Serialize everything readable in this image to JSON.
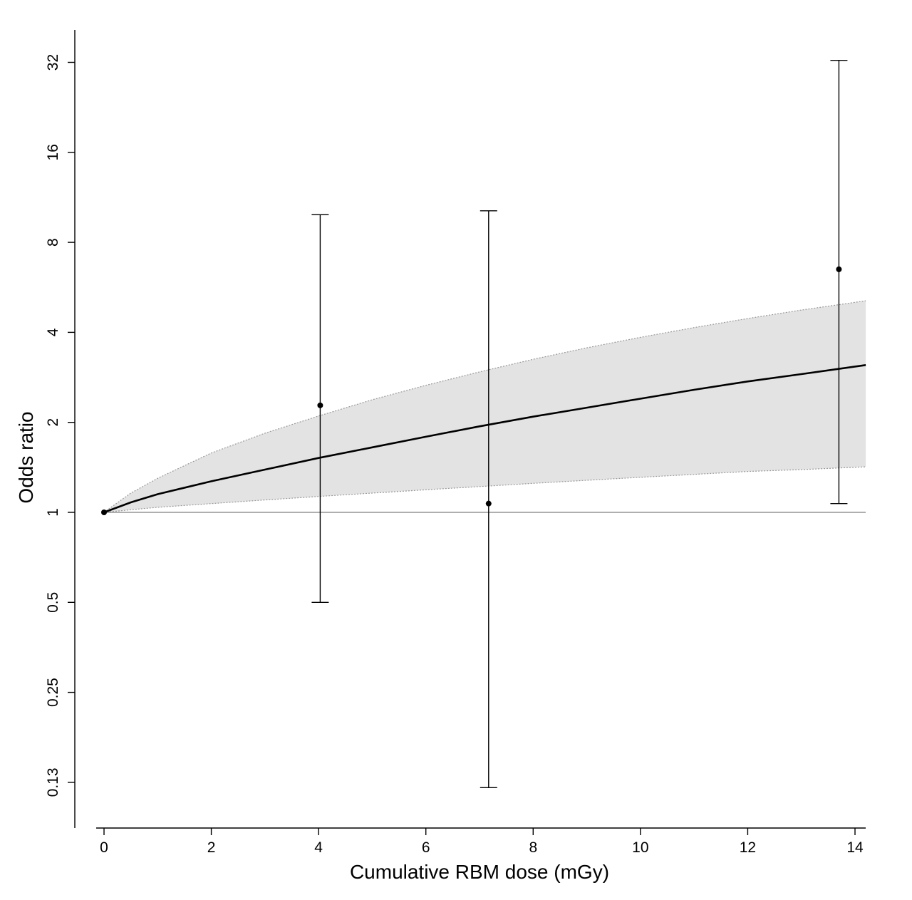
{
  "chart_data": {
    "type": "line",
    "title": "",
    "xlabel": "Cumulative RBM dose (mGy)",
    "ylabel": "Odds ratio",
    "xlim": [
      -0.55,
      14.1
    ],
    "ylim": [
      0.105,
      35
    ],
    "y_scale": "log2",
    "grid": false,
    "x_ticks": [
      0,
      2,
      4,
      6,
      8,
      10,
      12,
      14
    ],
    "x_tick_labels": [
      "0",
      "2",
      "4",
      "6",
      "8",
      "10",
      "12",
      "14"
    ],
    "y_ticks": [
      0.125,
      0.25,
      0.5,
      1,
      2,
      4,
      8,
      16,
      32
    ],
    "y_tick_labels": [
      "0.13",
      "0.25",
      "0.5",
      "1",
      "2",
      "4",
      "8",
      "16",
      "32"
    ],
    "reference_line_y": 1,
    "fit": {
      "x": [
        0,
        0.5,
        1,
        2,
        3,
        4,
        5,
        6,
        7,
        8,
        9,
        10,
        11,
        12,
        13,
        14.2
      ],
      "or": [
        1,
        1.08,
        1.15,
        1.27,
        1.39,
        1.52,
        1.65,
        1.79,
        1.94,
        2.09,
        2.24,
        2.4,
        2.57,
        2.74,
        2.9,
        3.11
      ],
      "ci_lower": [
        1,
        1.02,
        1.04,
        1.07,
        1.1,
        1.13,
        1.16,
        1.19,
        1.22,
        1.25,
        1.28,
        1.31,
        1.34,
        1.37,
        1.39,
        1.42
      ],
      "ci_upper": [
        1,
        1.16,
        1.3,
        1.58,
        1.84,
        2.1,
        2.38,
        2.66,
        2.95,
        3.25,
        3.55,
        3.85,
        4.15,
        4.45,
        4.75,
        5.1
      ]
    },
    "points": [
      {
        "x": 0,
        "or": 1
      },
      {
        "x": 4.03,
        "or": 2.28,
        "ci": [
          0.5,
          9.9
        ]
      },
      {
        "x": 7.17,
        "or": 1.07,
        "ci": [
          0.12,
          10.2
        ]
      },
      {
        "x": 13.7,
        "or": 6.5,
        "ci": [
          1.07,
          32.5
        ]
      }
    ],
    "colors": {
      "band_fill": "#e3e3e3",
      "band_edge": "#9a9a9a",
      "curve": "#000000",
      "reference_line": "#7f7f7f",
      "points": "#000000"
    }
  }
}
